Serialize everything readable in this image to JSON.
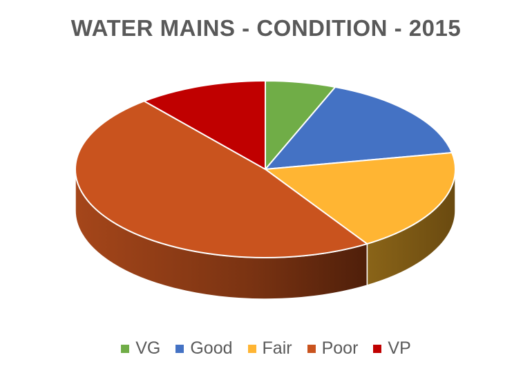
{
  "chart_data": {
    "type": "pie",
    "title": "WATER MAINS - CONDITION - 2015",
    "categories": [
      "VG",
      "Good",
      "Fair",
      "Poor",
      "VP"
    ],
    "values": [
      6,
      16,
      19,
      48,
      11
    ],
    "colors": [
      "#70AD47",
      "#4472C4",
      "#FFB533",
      "#C9531E",
      "#C00000"
    ],
    "legend_position": "bottom",
    "style": "3d-pie"
  }
}
